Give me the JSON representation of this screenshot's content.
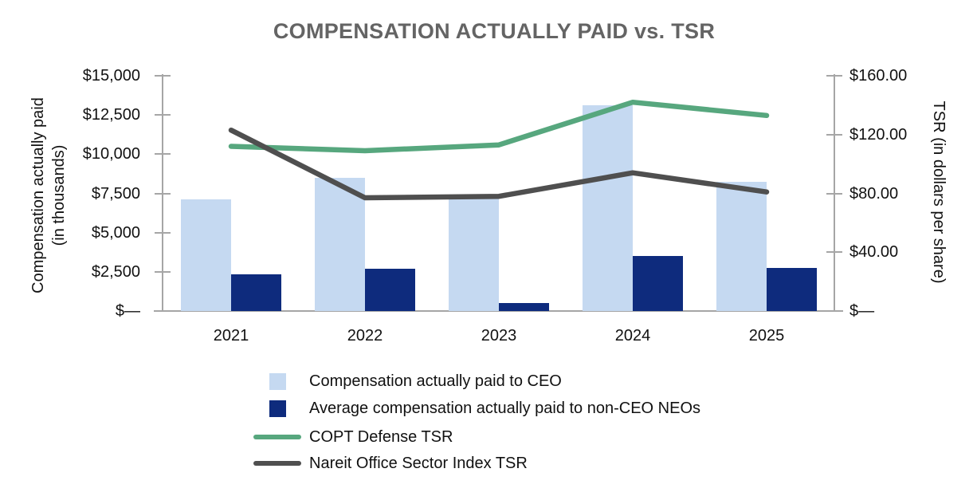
{
  "title": "COMPENSATION ACTUALLY PAID vs. TSR",
  "colors": {
    "ceo_bar": "#c5d9f1",
    "neo_bar": "#0e2b7d",
    "copt_line": "#57a77e",
    "nareit_line": "#4f4f4f",
    "axis": "#a6a6a6",
    "title_text": "#646464",
    "label_text": "#111111"
  },
  "chart_data": {
    "type": "bar",
    "subtype": "combo bar+line, dual axis",
    "categories": [
      "2021",
      "2022",
      "2023",
      "2024",
      "2025"
    ],
    "series": [
      {
        "name": "Compensation actually paid to CEO",
        "type": "bar",
        "axis": "left",
        "color": "#c5d9f1",
        "values": [
          7100,
          8500,
          7250,
          13100,
          8250
        ]
      },
      {
        "name": "Average compensation actually paid to non-CEO NEOs",
        "type": "bar",
        "axis": "left",
        "color": "#0e2b7d",
        "values": [
          2350,
          2700,
          500,
          3500,
          2750
        ]
      },
      {
        "name": "COPT Defense TSR",
        "type": "line",
        "axis": "right",
        "color": "#57a77e",
        "values": [
          112,
          109,
          113,
          142,
          133
        ]
      },
      {
        "name": "Nareit Office Sector Index TSR",
        "type": "line",
        "axis": "right",
        "color": "#4f4f4f",
        "values": [
          123,
          77,
          78,
          94,
          81
        ]
      }
    ],
    "title": "COMPENSATION ACTUALLY PAID vs. TSR",
    "left_axis": {
      "title_line1": "Compensation actually paid",
      "title_line2": "(in thousands)",
      "tick_labels": [
        "$15,000",
        "$12,500",
        "$10,000",
        "$7,500",
        "$5,000",
        "$2,500",
        "$—"
      ],
      "tick_values": [
        15000,
        12500,
        10000,
        7500,
        5000,
        2500,
        0
      ],
      "range": [
        0,
        15000
      ]
    },
    "right_axis": {
      "title": "TSR (in dollars per share)",
      "tick_labels": [
        "$160.00",
        "$120.00",
        "$80.00",
        "$40.00",
        "$—"
      ],
      "tick_values": [
        160,
        120,
        80,
        40,
        0
      ],
      "range": [
        0,
        160
      ]
    },
    "grid": "off",
    "legend_position": "bottom-left"
  }
}
